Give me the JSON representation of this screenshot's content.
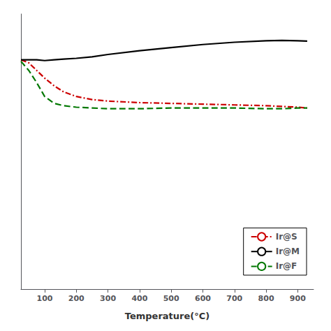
{
  "chart_data": {
    "type": "line",
    "xlabel": "Temperature(°C)",
    "xlim": [
      25,
      950
    ],
    "ylim": [
      85,
      103
    ],
    "xticks": [
      100,
      200,
      300,
      400,
      500,
      600,
      700,
      800,
      900
    ],
    "tick_labels": "x",
    "grid": false,
    "legend": "lower right",
    "x": [
      25,
      50,
      75,
      100,
      130,
      160,
      200,
      250,
      300,
      400,
      500,
      600,
      700,
      800,
      850,
      900,
      930
    ],
    "series": [
      {
        "name": "Ir@S",
        "color": "#cc0000",
        "line_style": "dashdot",
        "values": [
          100.0,
          99.8,
          99.3,
          98.8,
          98.3,
          97.9,
          97.6,
          97.4,
          97.3,
          97.2,
          97.15,
          97.1,
          97.05,
          97.0,
          96.95,
          96.9,
          96.85
        ]
      },
      {
        "name": "Ir@M",
        "color": "#000000",
        "line_style": "solid",
        "values": [
          100.0,
          100.0,
          100.0,
          99.95,
          100.0,
          100.05,
          100.1,
          100.2,
          100.35,
          100.6,
          100.8,
          101.0,
          101.15,
          101.25,
          101.27,
          101.25,
          101.22
        ]
      },
      {
        "name": "Ir@F",
        "color": "#007700",
        "line_style": "dashed",
        "values": [
          99.9,
          99.3,
          98.5,
          97.6,
          97.15,
          97.0,
          96.9,
          96.85,
          96.8,
          96.8,
          96.85,
          96.85,
          96.85,
          96.8,
          96.8,
          96.85,
          96.85
        ]
      }
    ]
  }
}
